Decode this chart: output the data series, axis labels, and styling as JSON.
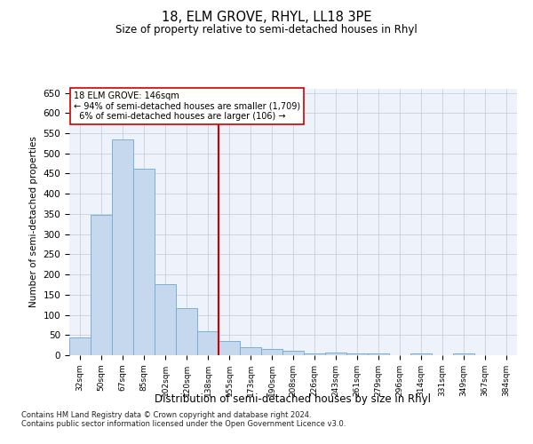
{
  "title": "18, ELM GROVE, RHYL, LL18 3PE",
  "subtitle": "Size of property relative to semi-detached houses in Rhyl",
  "xlabel": "Distribution of semi-detached houses by size in Rhyl",
  "ylabel": "Number of semi-detached properties",
  "bar_color": "#c5d8ed",
  "bar_edge_color": "#7bafd4",
  "vline_color": "#cc0000",
  "property_label": "18 ELM GROVE: 146sqm",
  "pct_smaller": 94,
  "n_smaller": 1709,
  "pct_larger": 6,
  "n_larger": 106,
  "categories": [
    "32sqm",
    "50sqm",
    "67sqm",
    "85sqm",
    "102sqm",
    "120sqm",
    "138sqm",
    "155sqm",
    "173sqm",
    "190sqm",
    "208sqm",
    "226sqm",
    "243sqm",
    "261sqm",
    "279sqm",
    "296sqm",
    "314sqm",
    "331sqm",
    "349sqm",
    "367sqm",
    "384sqm"
  ],
  "values": [
    45,
    348,
    535,
    463,
    175,
    117,
    60,
    35,
    20,
    15,
    10,
    5,
    7,
    5,
    5,
    0,
    5,
    0,
    5,
    0,
    0
  ],
  "ylim": [
    0,
    660
  ],
  "yticks": [
    0,
    50,
    100,
    150,
    200,
    250,
    300,
    350,
    400,
    450,
    500,
    550,
    600,
    650
  ],
  "background_color": "#eef2fa",
  "footnote1": "Contains HM Land Registry data © Crown copyright and database right 2024.",
  "footnote2": "Contains public sector information licensed under the Open Government Licence v3.0."
}
